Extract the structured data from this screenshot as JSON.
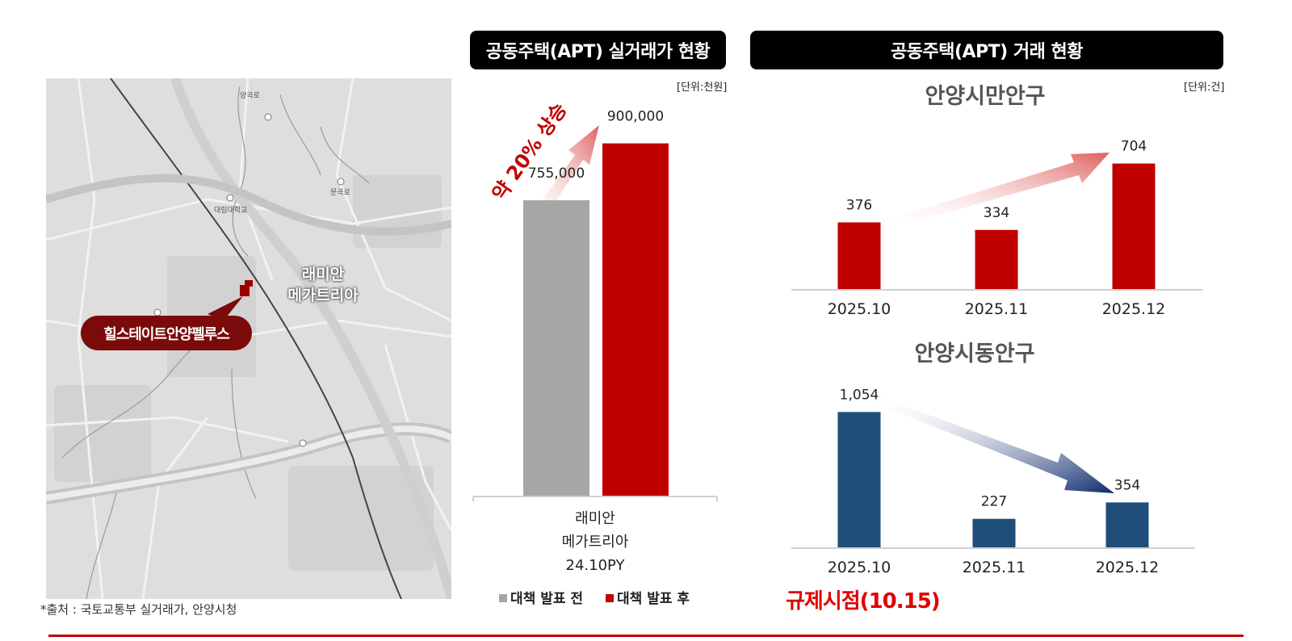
{
  "map": {
    "label_target": "래미안\n메가트리아",
    "label_subject": "힐스테이트안양펠루스",
    "road_labels": [
      "양곡로",
      "문곡로",
      "대림대학교"
    ]
  },
  "source_note": "*출처 : 국토교통부 실거래가, 안양시청",
  "price_panel": {
    "header": "공동주택(APT) 실거래가 현황",
    "unit": "[단위:천원]",
    "annotation": "약 20% 상승"
  },
  "trade_panel": {
    "header": "공동주택(APT) 거래 현황",
    "unit": "[단위:건]",
    "regulation_note": "규제시점(10.15)"
  },
  "chart_data": [
    {
      "type": "bar",
      "title": "",
      "categories": [
        "래미안\n메가트리아\n24.10PY"
      ],
      "series": [
        {
          "name": "대책 발표 전",
          "values": [
            755000
          ],
          "color": "#a6a6a6"
        },
        {
          "name": "대책 발표 후",
          "values": [
            900000
          ],
          "color": "#c00000"
        }
      ],
      "data_labels": [
        "755,000",
        "900,000"
      ],
      "ylim": [
        0,
        1000000
      ],
      "legend": "bottom",
      "grid": false
    },
    {
      "type": "bar",
      "title": "안양시만안구",
      "categories": [
        "2025.10",
        "2025.11",
        "2025.12"
      ],
      "values": [
        376,
        334,
        704
      ],
      "data_labels": [
        "376",
        "334",
        "704"
      ],
      "color": "#c00000",
      "ylim": [
        0,
        900
      ],
      "grid": false
    },
    {
      "type": "bar",
      "title": "안양시동안구",
      "categories": [
        "2025.10",
        "2025.11",
        "2025.12"
      ],
      "values": [
        1054,
        227,
        354
      ],
      "data_labels": [
        "1,054",
        "227",
        "354"
      ],
      "color": "#1f4e79",
      "ylim": [
        0,
        1250
      ],
      "grid": false
    }
  ]
}
